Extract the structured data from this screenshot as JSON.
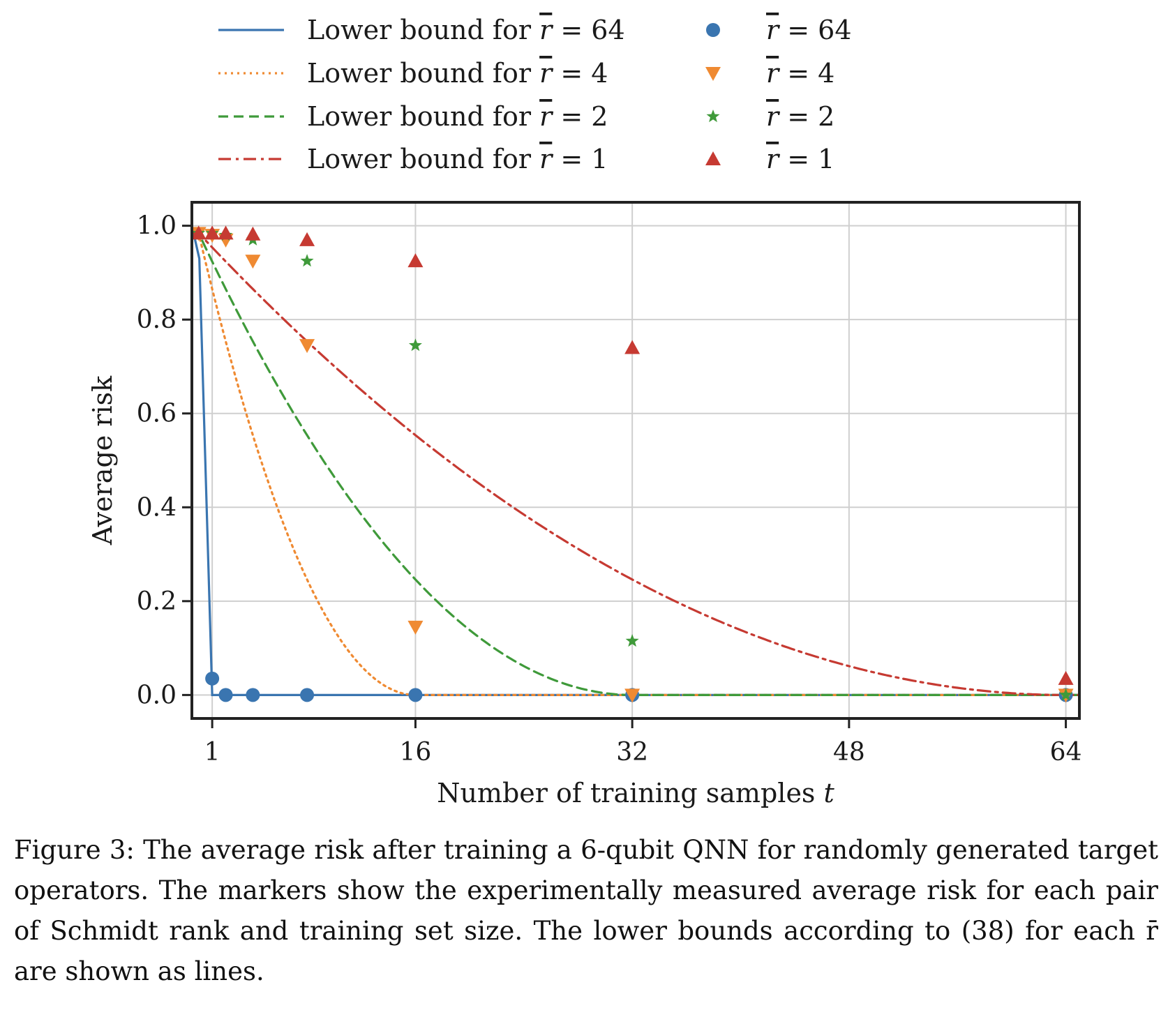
{
  "chart_data": {
    "type": "line",
    "xlabel": "Number of training samples t",
    "ylabel": "Average risk",
    "xlim": [
      -0.5,
      65
    ],
    "ylim": [
      -0.05,
      1.05
    ],
    "xticks": [
      1,
      16,
      32,
      48,
      64
    ],
    "yticks": [
      0.0,
      0.2,
      0.4,
      0.6,
      0.8,
      1.0
    ],
    "xtick_labels": [
      "1",
      "16",
      "32",
      "48",
      "64"
    ],
    "ytick_labels": [
      "0.0",
      "0.2",
      "0.4",
      "0.6",
      "0.8",
      "1.0"
    ],
    "grid": true,
    "legend_position": "top (above plot), two columns",
    "bound_rank_scale": 64,
    "bound_max": 0.984375,
    "series": [
      {
        "name": "Lower bound for r̄ = 64",
        "kind": "bound_line",
        "rank": 64,
        "color": "#3a75b0",
        "dash": "solid",
        "marker_series_name": "r̄ = 64",
        "marker": "circle",
        "points": [
          [
            1,
            0.035
          ],
          [
            2,
            0.0
          ],
          [
            4,
            0.0
          ],
          [
            8,
            0.0
          ],
          [
            16,
            0.0
          ],
          [
            32,
            0.0
          ],
          [
            64,
            0.0
          ]
        ]
      },
      {
        "name": "Lower bound for r̄ = 4",
        "kind": "bound_line",
        "rank": 4,
        "color": "#ef8a32",
        "dash": "dotted",
        "marker_series_name": "r̄ = 4",
        "marker": "triangle-down",
        "points": [
          [
            0,
            0.984
          ],
          [
            1,
            0.98
          ],
          [
            2,
            0.97
          ],
          [
            4,
            0.925
          ],
          [
            8,
            0.745
          ],
          [
            16,
            0.145
          ],
          [
            32,
            0.0
          ],
          [
            64,
            0.0
          ]
        ]
      },
      {
        "name": "Lower bound for r̄ = 2",
        "kind": "bound_line",
        "rank": 2,
        "color": "#3f9a3a",
        "dash": "dashed",
        "marker_series_name": "r̄ = 2",
        "marker": "star",
        "points": [
          [
            0,
            0.984
          ],
          [
            1,
            0.984
          ],
          [
            2,
            0.98
          ],
          [
            4,
            0.97
          ],
          [
            8,
            0.925
          ],
          [
            16,
            0.745
          ],
          [
            32,
            0.115
          ],
          [
            64,
            0.0
          ]
        ]
      },
      {
        "name": "Lower bound for r̄ = 1",
        "kind": "bound_line",
        "rank": 1,
        "color": "#c63a32",
        "dash": "dashdot",
        "marker_series_name": "r̄ = 1",
        "marker": "triangle-up",
        "points": [
          [
            0,
            0.984
          ],
          [
            1,
            0.984
          ],
          [
            2,
            0.984
          ],
          [
            4,
            0.982
          ],
          [
            8,
            0.97
          ],
          [
            16,
            0.925
          ],
          [
            32,
            0.74
          ],
          [
            64,
            0.035
          ]
        ]
      }
    ]
  },
  "legend": {
    "lines": [
      {
        "prefix": "Lower bound for ",
        "var": "r",
        "rest": " = 64"
      },
      {
        "prefix": "Lower bound for ",
        "var": "r",
        "rest": " = 4"
      },
      {
        "prefix": "Lower bound for ",
        "var": "r",
        "rest": " = 2"
      },
      {
        "prefix": "Lower bound for ",
        "var": "r",
        "rest": " = 1"
      }
    ],
    "markers": [
      {
        "var": "r",
        "rest": " = 64"
      },
      {
        "var": "r",
        "rest": " = 4"
      },
      {
        "var": "r",
        "rest": " = 2"
      },
      {
        "var": "r",
        "rest": " = 1"
      }
    ]
  },
  "axis_text": {
    "xlabel_text": "Number of training samples ",
    "xlabel_var": "t",
    "ylabel_text": "Average risk"
  },
  "caption": {
    "text": "Figure 3: The average risk after training a 6-qubit QNN for randomly generated target operators. The markers show the experimentally measured average risk for each pair of Schmidt rank and training set size. The lower bounds according to (38) for each r̄ are shown as lines."
  }
}
